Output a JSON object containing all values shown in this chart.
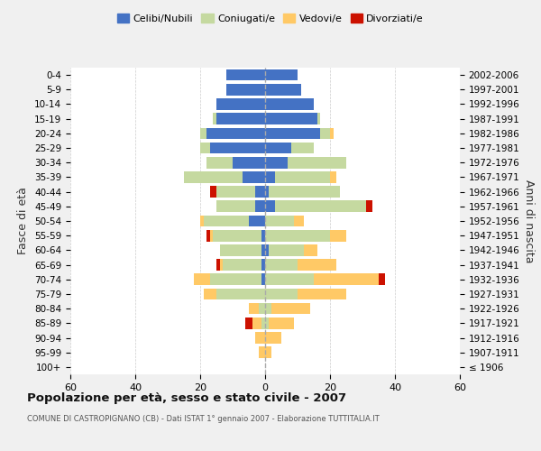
{
  "age_groups": [
    "100+",
    "95-99",
    "90-94",
    "85-89",
    "80-84",
    "75-79",
    "70-74",
    "65-69",
    "60-64",
    "55-59",
    "50-54",
    "45-49",
    "40-44",
    "35-39",
    "30-34",
    "25-29",
    "20-24",
    "15-19",
    "10-14",
    "5-9",
    "0-4"
  ],
  "birth_years": [
    "≤ 1906",
    "1907-1911",
    "1912-1916",
    "1917-1921",
    "1922-1926",
    "1927-1931",
    "1932-1936",
    "1937-1941",
    "1942-1946",
    "1947-1951",
    "1952-1956",
    "1957-1961",
    "1962-1966",
    "1967-1971",
    "1972-1976",
    "1977-1981",
    "1982-1986",
    "1987-1991",
    "1992-1996",
    "1997-2001",
    "2002-2006"
  ],
  "maschi": {
    "celibi": [
      0,
      0,
      0,
      0,
      0,
      0,
      1,
      1,
      1,
      1,
      5,
      3,
      3,
      7,
      10,
      17,
      18,
      15,
      15,
      12,
      12
    ],
    "coniugati": [
      0,
      0,
      0,
      1,
      2,
      15,
      16,
      12,
      13,
      15,
      14,
      12,
      12,
      18,
      8,
      3,
      2,
      1,
      0,
      0,
      0
    ],
    "vedovi": [
      0,
      2,
      3,
      3,
      3,
      4,
      5,
      1,
      0,
      1,
      1,
      0,
      0,
      0,
      0,
      0,
      0,
      0,
      0,
      0,
      0
    ],
    "divorziati": [
      0,
      0,
      0,
      2,
      0,
      0,
      0,
      1,
      0,
      1,
      0,
      0,
      2,
      0,
      0,
      0,
      0,
      0,
      0,
      0,
      0
    ]
  },
  "femmine": {
    "nubili": [
      0,
      0,
      0,
      0,
      0,
      0,
      0,
      0,
      1,
      0,
      0,
      3,
      1,
      3,
      7,
      8,
      17,
      16,
      15,
      11,
      10
    ],
    "coniugate": [
      0,
      0,
      0,
      1,
      2,
      10,
      15,
      10,
      11,
      20,
      9,
      28,
      22,
      17,
      18,
      7,
      3,
      1,
      0,
      0,
      0
    ],
    "vedove": [
      0,
      2,
      5,
      8,
      12,
      15,
      20,
      12,
      4,
      5,
      3,
      0,
      0,
      2,
      0,
      0,
      1,
      0,
      0,
      0,
      0
    ],
    "divorziate": [
      0,
      0,
      0,
      0,
      0,
      0,
      2,
      0,
      0,
      0,
      0,
      2,
      0,
      0,
      0,
      0,
      0,
      0,
      0,
      0,
      0
    ]
  },
  "colors": {
    "celibi_nubili": "#4472c4",
    "coniugati": "#c5d9a0",
    "vedovi": "#ffc966",
    "divorziati": "#cc1100"
  },
  "xlim": 60,
  "title": "Popolazione per età, sesso e stato civile - 2007",
  "subtitle": "COMUNE DI CASTROPIGNANO (CB) - Dati ISTAT 1° gennaio 2007 - Elaborazione TUTTITALIA.IT",
  "ylabel": "Fasce di età",
  "ylabel_right": "Anni di nascita",
  "bg_color": "#f0f0f0",
  "plot_bg": "#ffffff"
}
